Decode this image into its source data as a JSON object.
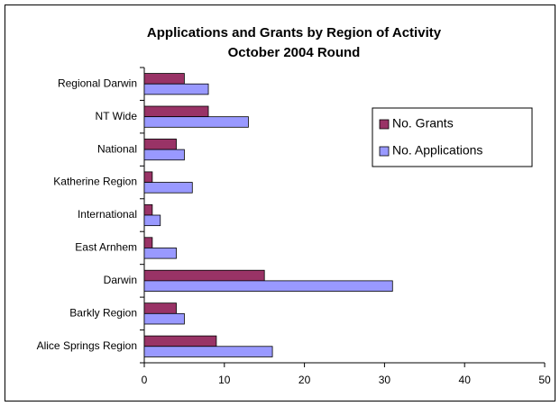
{
  "chart_data": {
    "type": "hbar",
    "title": "Applications and Grants by Region of Activity",
    "subtitle": "October 2004 Round",
    "categories": [
      "Regional Darwin",
      "NT Wide",
      "National",
      "Katherine Region",
      "International",
      "East Arnhem",
      "Darwin",
      "Barkly Region",
      "Alice Springs Region"
    ],
    "series": [
      {
        "name": "No. Grants",
        "color": "#993366",
        "values": [
          5,
          8,
          4,
          1,
          1,
          1,
          15,
          4,
          9
        ]
      },
      {
        "name": "No. Applications",
        "color": "#9999ff",
        "values": [
          8,
          13,
          5,
          6,
          2,
          4,
          31,
          5,
          16
        ]
      }
    ],
    "xlim": [
      0,
      50
    ],
    "xticks": [
      0,
      10,
      20,
      30,
      40,
      50
    ],
    "grid": false,
    "legend": "right"
  }
}
